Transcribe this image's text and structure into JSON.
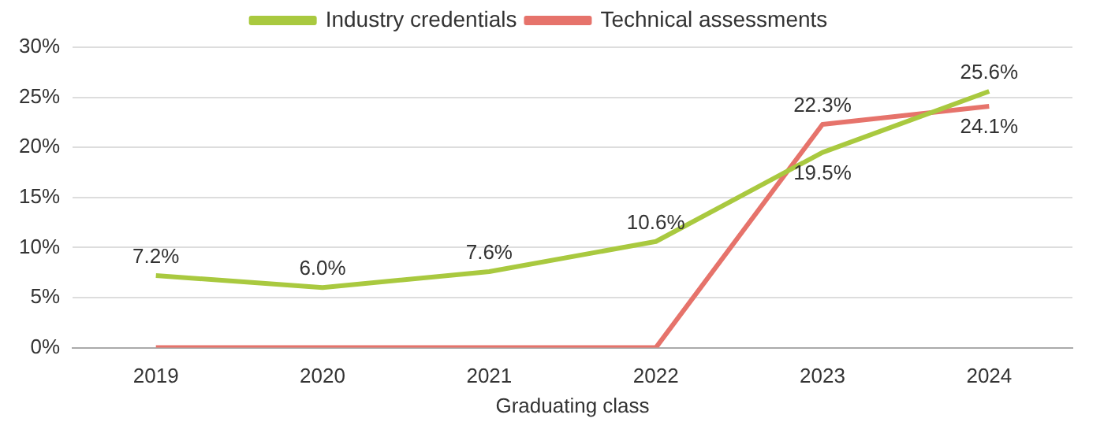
{
  "chart_data": {
    "type": "line",
    "xlabel": "Graduating class",
    "categories": [
      "2019",
      "2020",
      "2021",
      "2022",
      "2023",
      "2024"
    ],
    "series": [
      {
        "name": "Industry credentials",
        "color": "#a9c93f",
        "values": [
          7.2,
          6.0,
          7.6,
          10.6,
          19.5,
          25.6
        ],
        "value_labels": [
          "7.2%",
          "6.0%",
          "7.6%",
          "10.6%",
          "19.5%",
          "25.6%"
        ]
      },
      {
        "name": "Technical assessments",
        "color": "#e6736b",
        "values": [
          0,
          0,
          0,
          0,
          22.3,
          24.1
        ],
        "value_labels": [
          null,
          null,
          null,
          null,
          "22.3%",
          "24.1%"
        ]
      }
    ],
    "ylim": [
      0,
      30
    ],
    "yticks": [
      {
        "value": 0,
        "label": "0%"
      },
      {
        "value": 5,
        "label": "5%"
      },
      {
        "value": 10,
        "label": "10%"
      },
      {
        "value": 15,
        "label": "15%"
      },
      {
        "value": 20,
        "label": "20%"
      },
      {
        "value": 25,
        "label": "25%"
      },
      {
        "value": 30,
        "label": "30%"
      }
    ],
    "grid": "y",
    "legend": "top",
    "marker": "none",
    "line_style": "solid"
  }
}
